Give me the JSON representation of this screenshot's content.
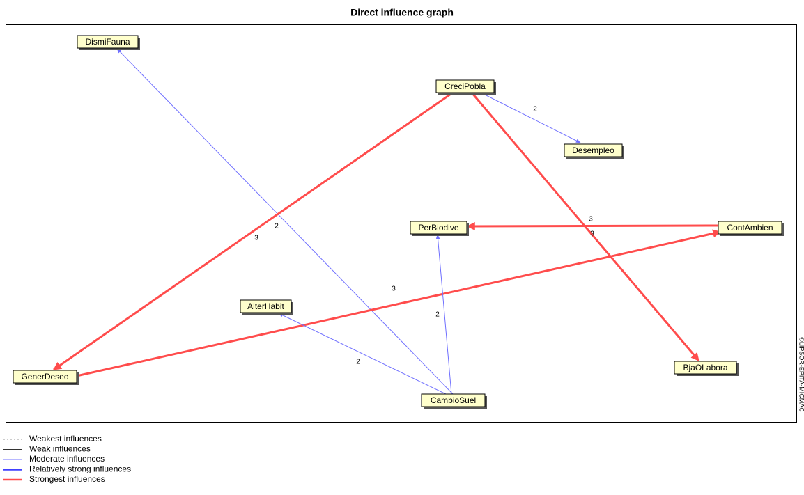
{
  "title": "Direct influence graph",
  "watermark": "©LIPSOR-EPITA-MICMAC",
  "nodes": [
    {
      "label": "DismiFauna"
    },
    {
      "label": "CreciPobla"
    },
    {
      "label": "Desempleo"
    },
    {
      "label": "PerBiodive"
    },
    {
      "label": "ContAmbien"
    },
    {
      "label": "AlterHabit"
    },
    {
      "label": "GenerDeseo"
    },
    {
      "label": "BjaOLabora"
    },
    {
      "label": "CambioSuel"
    }
  ],
  "edges": [
    {
      "label": "2",
      "color": "#7070ff"
    },
    {
      "label": "2",
      "color": "#7070ff"
    },
    {
      "label": "3",
      "color": "#ff4c4c"
    },
    {
      "label": "3",
      "color": "#ff4c4c"
    },
    {
      "label": "3",
      "color": "#ff4c4c"
    },
    {
      "label": "3",
      "color": "#ff4c4c"
    },
    {
      "label": "2",
      "color": "#7070ff"
    },
    {
      "label": "2",
      "color": "#7070ff"
    }
  ],
  "legend": [
    {
      "label": "Weakest influences",
      "color": "#999999"
    },
    {
      "label": "Weak influences",
      "color": "#333333"
    },
    {
      "label": "Moderate influences",
      "color": "#7070ff"
    },
    {
      "label": "Relatively strong influences",
      "color": "#4040ff"
    },
    {
      "label": "Strongest influences",
      "color": "#ff4c4c"
    }
  ]
}
